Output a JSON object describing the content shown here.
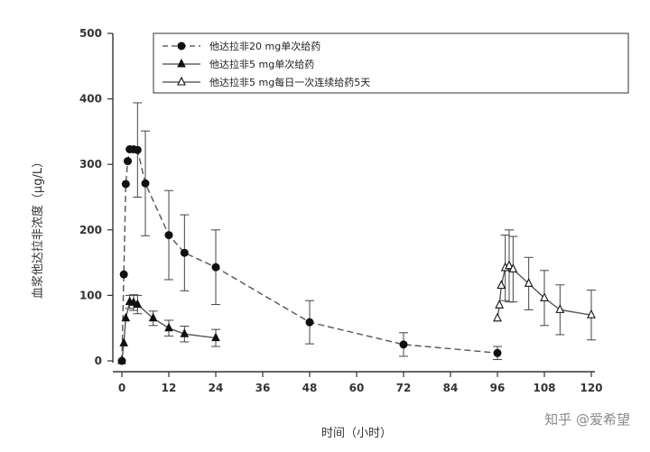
{
  "chart_data": {
    "type": "line",
    "xlabel": "时间（小时）",
    "ylabel": "血浆他达拉非浓度（μg/L）",
    "xlim": [
      0,
      120
    ],
    "ylim": [
      0,
      500
    ],
    "xticks": [
      0,
      12,
      24,
      36,
      48,
      60,
      72,
      84,
      96,
      108,
      120
    ],
    "yticks": [
      0,
      100,
      200,
      300,
      400,
      500
    ],
    "grid": false,
    "legend_position": "top",
    "series": [
      {
        "name": "他达拉非20 mg单次给药",
        "style": "dashed",
        "marker": "filled-circle",
        "x": [
          0,
          0.5,
          1,
          1.5,
          2,
          3,
          4,
          6,
          12,
          16,
          24,
          48,
          72,
          96
        ],
        "y": [
          0,
          132,
          270,
          305,
          323,
          323,
          322,
          271,
          192,
          165,
          143,
          59,
          25,
          12
        ],
        "err": [
          0,
          0,
          0,
          0,
          0,
          0,
          72,
          80,
          68,
          58,
          57,
          33,
          18,
          10
        ]
      },
      {
        "name": "他达拉非5 mg单次给药",
        "style": "solid",
        "marker": "filled-triangle",
        "x": [
          0,
          0.5,
          1,
          2,
          3,
          4,
          8,
          12,
          16,
          24
        ],
        "y": [
          0,
          27,
          65,
          90,
          89,
          86,
          65,
          50,
          41,
          35
        ],
        "err": [
          0,
          0,
          0,
          10,
          12,
          14,
          11,
          12,
          12,
          13
        ]
      },
      {
        "name": "他达拉非5 mg每日一次连续给药5天",
        "style": "solid",
        "marker": "open-triangle",
        "x": [
          96,
          96.5,
          97,
          98,
          99,
          100,
          104,
          108,
          112,
          120
        ],
        "y": [
          65,
          85,
          115,
          142,
          145,
          140,
          118,
          96,
          78,
          70
        ],
        "err": [
          0,
          0,
          0,
          50,
          55,
          50,
          40,
          42,
          38,
          38
        ]
      }
    ]
  },
  "watermark": "知乎 @爱希望"
}
